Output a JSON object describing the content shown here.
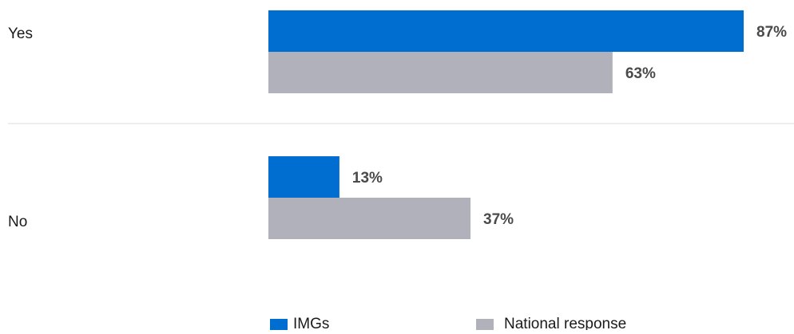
{
  "chart_data": {
    "type": "bar",
    "orientation": "horizontal",
    "categories": [
      "Yes",
      "No"
    ],
    "series": [
      {
        "name": "IMGs",
        "values": [
          87,
          13
        ],
        "labels": [
          "87%",
          "13%"
        ],
        "color": "#006ed1"
      },
      {
        "name": "National response",
        "values": [
          63,
          37
        ],
        "labels": [
          "63%",
          "37%"
        ],
        "color": "#b1b1bc"
      }
    ],
    "unit": "%",
    "xlim": [
      0,
      100
    ],
    "grid": false,
    "category_separator": true,
    "legend_position": "bottom"
  }
}
